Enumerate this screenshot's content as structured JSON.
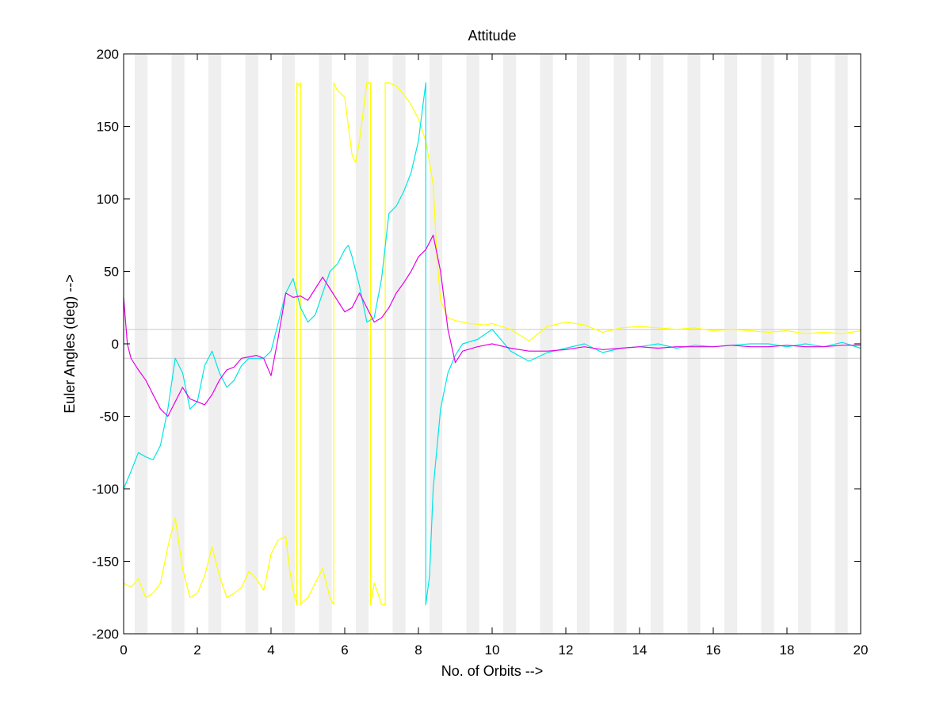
{
  "chart_data": {
    "type": "line",
    "title": "Attitude",
    "xlabel": "No. of Orbits -->",
    "ylabel": "Euler Angles (deg) -->",
    "xlim": [
      0,
      20
    ],
    "ylim": [
      -200,
      200
    ],
    "xticks": [
      0,
      2,
      4,
      6,
      8,
      10,
      12,
      14,
      16,
      18,
      20
    ],
    "yticks": [
      200,
      150,
      100,
      50,
      0,
      -50,
      -100,
      -150,
      -200
    ],
    "grid": false,
    "legend": "none",
    "reference_lines": [
      10,
      -10
    ],
    "reference_line_color": "#cccccc",
    "eclipse_band_color": "#efefef",
    "eclipse_bands": [
      [
        0.3,
        0.65
      ],
      [
        1.3,
        1.65
      ],
      [
        2.3,
        2.65
      ],
      [
        3.3,
        3.65
      ],
      [
        4.3,
        4.65
      ],
      [
        5.3,
        5.65
      ],
      [
        6.3,
        6.65
      ],
      [
        7.3,
        7.65
      ],
      [
        8.3,
        8.65
      ],
      [
        9.3,
        9.65
      ],
      [
        10.3,
        10.65
      ],
      [
        11.3,
        11.65
      ],
      [
        12.3,
        12.65
      ],
      [
        13.3,
        13.65
      ],
      [
        14.3,
        14.65
      ],
      [
        15.3,
        15.65
      ],
      [
        16.3,
        16.65
      ],
      [
        17.3,
        17.65
      ],
      [
        18.3,
        18.65
      ],
      [
        19.3,
        19.65
      ]
    ],
    "series": [
      {
        "color": "#ffff00",
        "x": [
          0,
          0.2,
          0.4,
          0.6,
          0.8,
          1.0,
          1.2,
          1.4,
          1.6,
          1.8,
          2.0,
          2.2,
          2.4,
          2.6,
          2.8,
          3.0,
          3.2,
          3.4,
          3.6,
          3.8,
          4.0,
          4.2,
          4.4,
          4.5,
          4.6,
          4.7,
          4.7,
          4.75,
          4.8,
          4.8,
          4.85,
          5.0,
          5.2,
          5.4,
          5.6,
          5.7,
          5.7,
          5.8,
          6.0,
          6.1,
          6.2,
          6.3,
          6.4,
          6.5,
          6.6,
          6.7,
          6.7,
          6.8,
          6.9,
          7.0,
          7.1,
          7.1,
          7.2,
          7.4,
          7.6,
          7.8,
          8.0,
          8.2,
          8.4,
          8.5,
          8.6,
          8.8,
          9.0,
          9.4,
          9.8,
          10.0,
          10.5,
          11.0,
          11.5,
          12.0,
          12.5,
          13.0,
          13.5,
          14.0,
          14.5,
          15.0,
          15.5,
          16.0,
          16.5,
          17.0,
          17.5,
          18.0,
          18.5,
          19.0,
          19.5,
          20.0
        ],
        "y": [
          -165,
          -168,
          -162,
          -175,
          -172,
          -165,
          -140,
          -120,
          -155,
          -175,
          -172,
          -160,
          -140,
          -160,
          -175,
          -172,
          -168,
          -157,
          -162,
          -170,
          -145,
          -135,
          -133,
          -155,
          -170,
          -180,
          180,
          178,
          180,
          -180,
          -178,
          -175,
          -165,
          -155,
          -175,
          -180,
          180,
          175,
          170,
          150,
          130,
          125,
          140,
          160,
          180,
          180,
          -180,
          -165,
          -172,
          -180,
          -180,
          180,
          180,
          178,
          172,
          165,
          155,
          140,
          110,
          60,
          30,
          18,
          16,
          14,
          13,
          14,
          10,
          2,
          12,
          15,
          13,
          8,
          11,
          12,
          11,
          10,
          11,
          9,
          10,
          9,
          8,
          9,
          7,
          8,
          7,
          9
        ]
      },
      {
        "color": "#00e5e5",
        "x": [
          0,
          0.2,
          0.4,
          0.6,
          0.8,
          1.0,
          1.2,
          1.4,
          1.6,
          1.8,
          2.0,
          2.2,
          2.4,
          2.6,
          2.8,
          3.0,
          3.2,
          3.4,
          3.6,
          3.8,
          4.0,
          4.2,
          4.4,
          4.6,
          4.8,
          5.0,
          5.2,
          5.4,
          5.6,
          5.8,
          6.0,
          6.1,
          6.2,
          6.4,
          6.6,
          6.8,
          7.0,
          7.2,
          7.4,
          7.6,
          7.8,
          8.0,
          8.1,
          8.2,
          8.2,
          8.3,
          8.4,
          8.6,
          8.8,
          9.0,
          9.2,
          9.6,
          10.0,
          10.5,
          11.0,
          11.5,
          12.0,
          12.5,
          13.0,
          13.5,
          14.0,
          14.5,
          15.0,
          15.5,
          16.0,
          16.5,
          17.0,
          17.5,
          18.0,
          18.5,
          19.0,
          19.5,
          20.0
        ],
        "y": [
          -100,
          -88,
          -75,
          -78,
          -80,
          -70,
          -45,
          -10,
          -20,
          -45,
          -40,
          -15,
          -5,
          -20,
          -30,
          -25,
          -15,
          -10,
          -10,
          -10,
          -5,
          15,
          35,
          45,
          25,
          15,
          20,
          35,
          50,
          55,
          65,
          68,
          60,
          40,
          15,
          18,
          45,
          90,
          95,
          105,
          118,
          140,
          160,
          180,
          -180,
          -160,
          -100,
          -45,
          -20,
          -8,
          0,
          3,
          10,
          -5,
          -12,
          -6,
          -3,
          0,
          -6,
          -3,
          -2,
          0,
          -3,
          -1,
          -2,
          -1,
          0,
          0,
          -2,
          0,
          -2,
          1,
          -3
        ]
      },
      {
        "color": "#e500e5",
        "x": [
          0,
          0.1,
          0.2,
          0.4,
          0.6,
          0.8,
          1.0,
          1.2,
          1.4,
          1.6,
          1.8,
          2.0,
          2.2,
          2.4,
          2.6,
          2.8,
          3.0,
          3.2,
          3.4,
          3.6,
          3.8,
          4.0,
          4.2,
          4.4,
          4.6,
          4.8,
          5.0,
          5.2,
          5.4,
          5.6,
          5.8,
          6.0,
          6.2,
          6.4,
          6.6,
          6.8,
          7.0,
          7.2,
          7.4,
          7.6,
          7.8,
          8.0,
          8.2,
          8.4,
          8.6,
          8.8,
          9.0,
          9.2,
          9.6,
          10.0,
          10.5,
          11.0,
          11.5,
          12.0,
          12.5,
          13.0,
          13.5,
          14.0,
          14.5,
          15.0,
          15.5,
          16.0,
          16.5,
          17.0,
          17.5,
          18.0,
          18.5,
          19.0,
          19.5,
          20.0
        ],
        "y": [
          32,
          0,
          -10,
          -18,
          -25,
          -35,
          -45,
          -50,
          -40,
          -30,
          -38,
          -40,
          -42,
          -35,
          -25,
          -18,
          -16,
          -10,
          -9,
          -8,
          -10,
          -22,
          5,
          35,
          32,
          33,
          30,
          38,
          46,
          38,
          30,
          22,
          25,
          35,
          25,
          15,
          18,
          25,
          35,
          42,
          50,
          60,
          65,
          75,
          50,
          10,
          -13,
          -5,
          -2,
          0,
          -3,
          -5,
          -5,
          -4,
          -2,
          -4,
          -3,
          -2,
          -3,
          -2,
          -2,
          -2,
          -1,
          -2,
          -2,
          -1,
          -2,
          -2,
          -1,
          -1
        ]
      }
    ]
  }
}
